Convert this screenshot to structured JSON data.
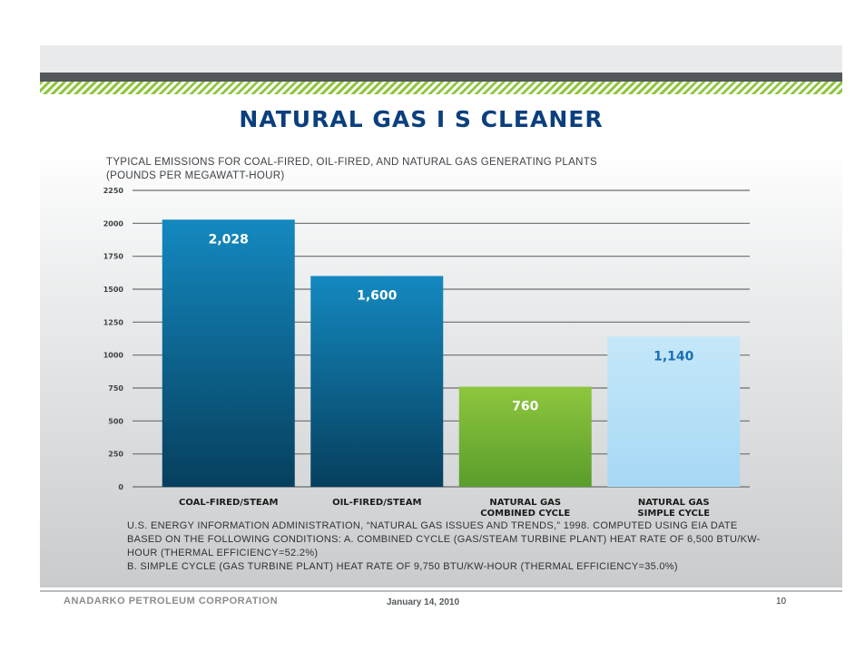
{
  "slide": {
    "title": "NATURAL GAS I S CLEANER",
    "subtitle_lines": [
      "TYPICAL EMISSIONS FOR COAL-FIRED, OIL-FIRED, AND NATURAL GAS GENERATING PLANTS",
      "(POUNDS PER MEGAWATT-HOUR)"
    ],
    "source_lines": [
      "U.S. ENERGY INFORMATION ADMINISTRATION, “NATURAL GAS ISSUES AND TRENDS,” 1998.   COMPUTED USING EIA DATE BASED ON THE FOLLOWING CONDITIONS:   A. COMBINED CYCLE (GAS/STEAM TURBINE PLANT) HEAT RATE OF 6,500 BTU/KW-HOUR (THERMAL EFFICIENCY=52.2%)",
      "B. SIMPLE CYCLE (GAS TURBINE PLANT) HEAT RATE OF 9,750 BTU/KW-HOUR (THERMAL EFFICIENCY=35.0%)"
    ],
    "footer": {
      "company": "ANADARKO PETROLEUM CORPORATION",
      "date": "January 14, 2010",
      "page": "10"
    }
  },
  "chart_data": {
    "type": "bar",
    "title": "NATURAL GAS I S CLEANER",
    "categories": [
      [
        "COAL-FIRED/STEAM"
      ],
      [
        "OIL-FIRED/STEAM"
      ],
      [
        "NATURAL GAS",
        "COMBINED CYCLE"
      ],
      [
        "NATURAL GAS",
        "SIMPLE CYCLE"
      ]
    ],
    "values": [
      2028,
      1600,
      760,
      1140
    ],
    "value_labels": [
      "2,028",
      "1,600",
      "760",
      "1,140"
    ],
    "y_ticks": [
      0,
      250,
      500,
      750,
      1000,
      1250,
      1500,
      1750,
      2000,
      2250
    ],
    "ylim": [
      0,
      2250
    ],
    "grid": true,
    "legend": "none",
    "colors": {
      "bar_fills": [
        "coal",
        "oil",
        "combined",
        "simple"
      ],
      "value_label_colors": [
        "#ffffff",
        "#ffffff",
        "#ffffff",
        "#1b6fb5"
      ],
      "gridline": "#6b6e71"
    }
  }
}
